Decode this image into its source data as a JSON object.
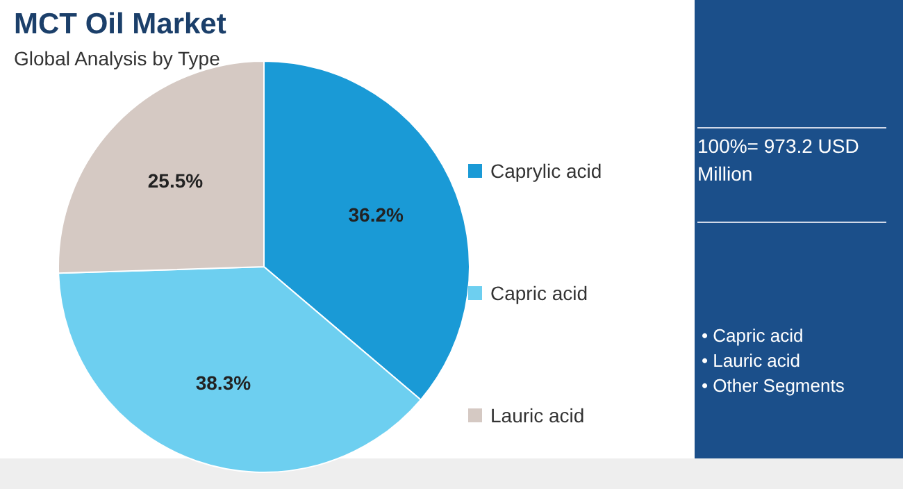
{
  "chart_data": {
    "type": "pie",
    "title": "MCT Oil Market",
    "subtitle": "Global Analysis by Type",
    "categories": [
      "Caprylic acid",
      "Capric acid",
      "Lauric acid"
    ],
    "values": [
      36.2,
      38.3,
      25.5
    ],
    "colors": [
      "#1a9ad6",
      "#6dcff0",
      "#d5c9c3"
    ],
    "value_labels": [
      "36.2%",
      "38.3%",
      "25.5%"
    ],
    "legend": "right",
    "annotations": [
      "100%= 973.2 USD Million",
      "• Capric acid",
      "• Lauric acid",
      "• Other Segments"
    ]
  }
}
